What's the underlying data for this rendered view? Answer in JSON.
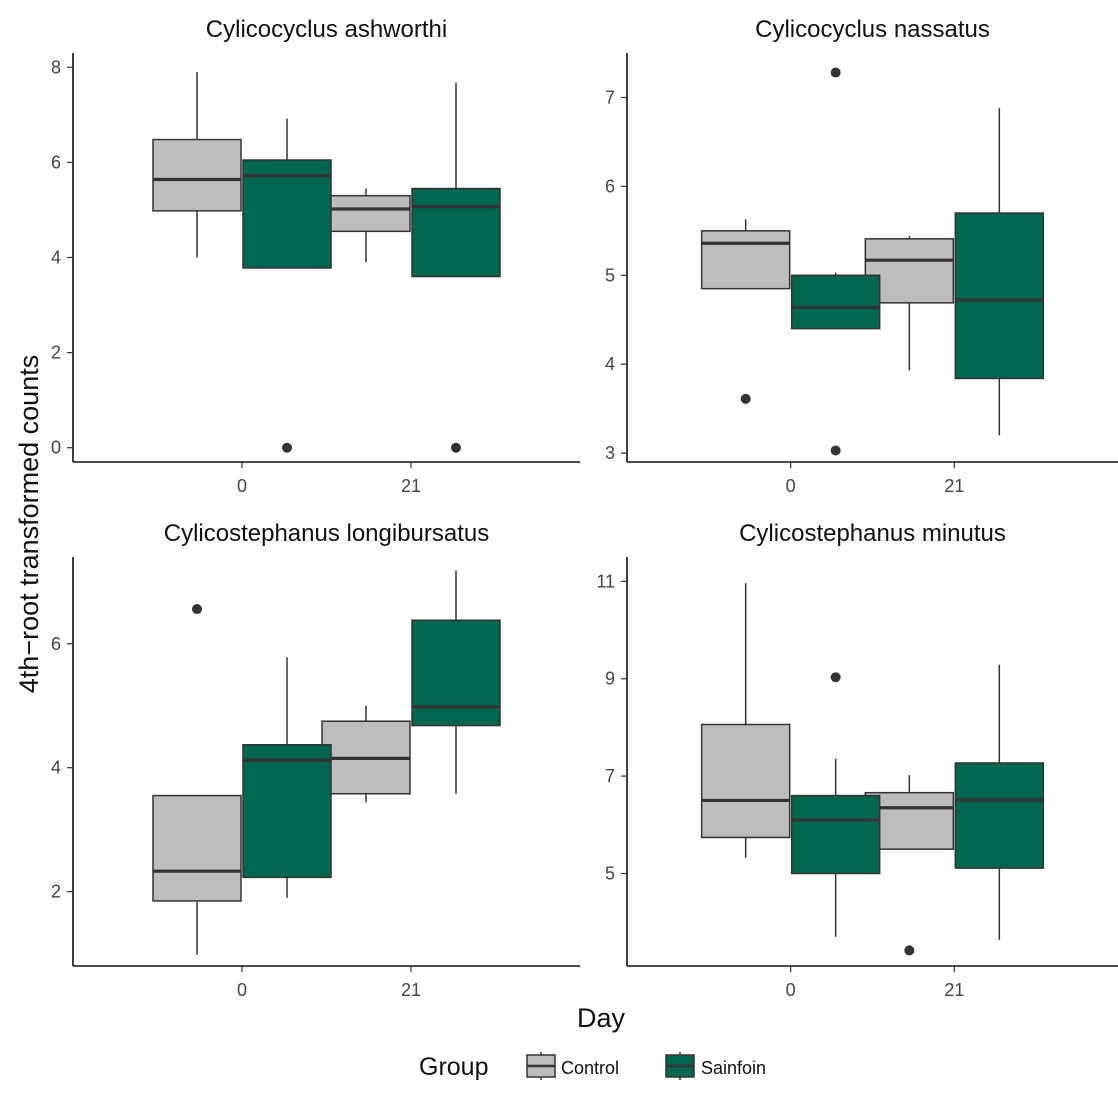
{
  "chart_data": {
    "type": "box",
    "xlabel": "Day",
    "ylabel": "4th−root transformed counts",
    "categories": [
      "0",
      "21"
    ],
    "legend": {
      "title": "Group",
      "placement": "bottom",
      "entries": [
        {
          "name": "Control",
          "color": "#bdbdbd"
        },
        {
          "name": "Sainfoin",
          "color": "#00664f"
        }
      ]
    },
    "panels": [
      {
        "title": "Cylicocyclus ashworthi",
        "ylim": [
          -0.3,
          8.3
        ],
        "yticks": [
          0,
          2,
          4,
          6,
          8
        ],
        "series": [
          {
            "name": "Control",
            "boxes": [
              {
                "day": "0",
                "min": 4.0,
                "q1": 4.98,
                "median": 5.64,
                "q3": 6.48,
                "max": 7.9,
                "outliers": []
              },
              {
                "day": "21",
                "min": 3.9,
                "q1": 4.55,
                "median": 5.02,
                "q3": 5.3,
                "max": 5.45,
                "outliers": []
              }
            ]
          },
          {
            "name": "Sainfoin",
            "boxes": [
              {
                "day": "0",
                "min": 3.78,
                "q1": 3.78,
                "median": 5.72,
                "q3": 6.05,
                "max": 6.92,
                "outliers": [
                  0
                ]
              },
              {
                "day": "21",
                "min": 3.6,
                "q1": 3.6,
                "median": 5.07,
                "q3": 5.45,
                "max": 7.68,
                "outliers": [
                  0
                ]
              }
            ]
          }
        ]
      },
      {
        "title": "Cylicocyclus nassatus",
        "ylim": [
          2.9,
          7.5
        ],
        "yticks": [
          3,
          4,
          5,
          6,
          7
        ],
        "series": [
          {
            "name": "Control",
            "boxes": [
              {
                "day": "0",
                "min": 4.85,
                "q1": 4.85,
                "median": 5.36,
                "q3": 5.5,
                "max": 5.63,
                "outliers": [
                  3.61
                ]
              },
              {
                "day": "21",
                "min": 3.93,
                "q1": 4.69,
                "median": 5.17,
                "q3": 5.41,
                "max": 5.44,
                "outliers": []
              }
            ]
          },
          {
            "name": "Sainfoin",
            "boxes": [
              {
                "day": "0",
                "min": 4.4,
                "q1": 4.4,
                "median": 4.64,
                "q3": 5.0,
                "max": 5.03,
                "outliers": [
                  7.28,
                  3.03
                ]
              },
              {
                "day": "21",
                "min": 3.2,
                "q1": 3.84,
                "median": 4.72,
                "q3": 5.7,
                "max": 6.88,
                "outliers": []
              }
            ]
          }
        ]
      },
      {
        "title": "Cylicostephanus longibursatus",
        "ylim": [
          0.8,
          7.4
        ],
        "yticks": [
          2,
          4,
          6
        ],
        "series": [
          {
            "name": "Control",
            "boxes": [
              {
                "day": "0",
                "min": 0.98,
                "q1": 1.85,
                "median": 2.33,
                "q3": 3.55,
                "max": 3.55,
                "outliers": [
                  6.56
                ]
              },
              {
                "day": "21",
                "min": 3.44,
                "q1": 3.58,
                "median": 4.15,
                "q3": 4.75,
                "max": 5.0,
                "outliers": []
              }
            ]
          },
          {
            "name": "Sainfoin",
            "boxes": [
              {
                "day": "0",
                "min": 1.9,
                "q1": 2.23,
                "median": 4.12,
                "q3": 4.37,
                "max": 5.78,
                "outliers": []
              },
              {
                "day": "21",
                "min": 3.58,
                "q1": 4.68,
                "median": 4.98,
                "q3": 6.38,
                "max": 7.18,
                "outliers": []
              }
            ]
          }
        ]
      },
      {
        "title": "Cylicostephanus minutus",
        "ylim": [
          3.1,
          11.5
        ],
        "yticks": [
          5,
          7,
          9,
          11
        ],
        "series": [
          {
            "name": "Control",
            "boxes": [
              {
                "day": "0",
                "min": 5.32,
                "q1": 5.74,
                "median": 6.5,
                "q3": 8.06,
                "max": 10.96,
                "outliers": []
              },
              {
                "day": "21",
                "min": 5.5,
                "q1": 5.5,
                "median": 6.35,
                "q3": 6.66,
                "max": 7.02,
                "outliers": [
                  3.42
                ]
              }
            ]
          },
          {
            "name": "Sainfoin",
            "boxes": [
              {
                "day": "0",
                "min": 3.7,
                "q1": 5.0,
                "median": 6.1,
                "q3": 6.6,
                "max": 7.36,
                "outliers": [
                  9.03
                ]
              },
              {
                "day": "21",
                "min": 3.64,
                "q1": 5.11,
                "median": 6.51,
                "q3": 7.27,
                "max": 9.29,
                "outliers": []
              }
            ]
          }
        ]
      }
    ]
  }
}
